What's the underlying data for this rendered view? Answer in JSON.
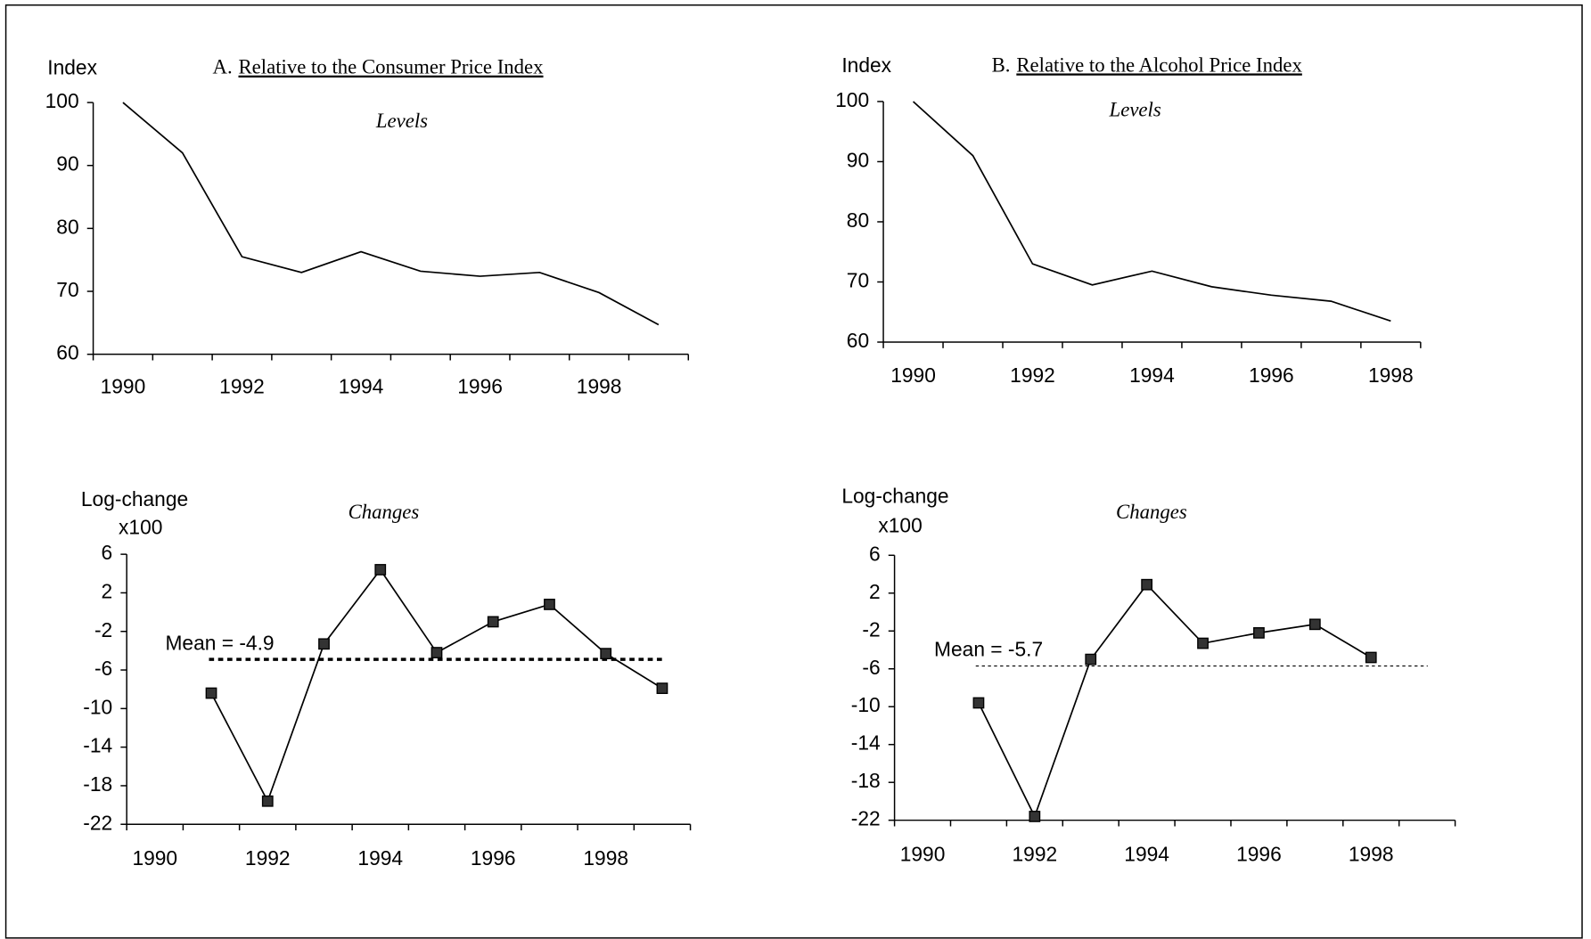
{
  "chart_data": [
    {
      "type": "line",
      "panel": "A.",
      "title": "Relative to the Consumer Price Index",
      "subtitle": "Levels",
      "ylabel": [
        "Index"
      ],
      "categories": [
        "1990",
        null,
        "1992",
        null,
        "1994",
        null,
        "1996",
        null,
        "1998",
        null
      ],
      "values": [
        100,
        92,
        75.5,
        73,
        76.3,
        73.2,
        72.4,
        73,
        69.8,
        64.7
      ],
      "color": "#000000",
      "markers": false,
      "ylim": [
        60,
        100
      ],
      "yticks": [
        60,
        70,
        80,
        90,
        100
      ]
    },
    {
      "type": "line",
      "panel": "B.",
      "title": "Relative to the Alcohol Price Index",
      "subtitle": "Levels",
      "ylabel": [
        "Index"
      ],
      "categories": [
        "1990",
        null,
        "1992",
        null,
        "1994",
        null,
        "1996",
        null,
        "1998"
      ],
      "values": [
        100,
        91,
        73,
        69.5,
        71.8,
        69.2,
        67.8,
        66.8,
        63.5
      ],
      "color": "#000000",
      "markers": false,
      "ylim": [
        60,
        100
      ],
      "yticks": [
        60,
        70,
        80,
        90,
        100
      ]
    },
    {
      "type": "line",
      "subtitle": "Changes",
      "ylabel": [
        "Log-change",
        "x100"
      ],
      "categories": [
        "1990",
        null,
        "1992",
        null,
        "1994",
        null,
        "1996",
        null,
        "1998",
        null
      ],
      "values": [
        null,
        -8.4,
        -19.6,
        -3.3,
        4.4,
        -4.2,
        -1.0,
        0.8,
        -4.3,
        -7.9
      ],
      "color": "#000000",
      "markers": true,
      "mean": -4.9,
      "mean_label": "Mean = -4.9",
      "ylim": [
        -22,
        6
      ],
      "yticks": [
        -22,
        -18,
        -14,
        -10,
        -6,
        -2,
        2,
        6
      ]
    },
    {
      "type": "line",
      "subtitle": "Changes",
      "ylabel": [
        "Log-change",
        "x100"
      ],
      "categories": [
        "1990",
        null,
        "1992",
        null,
        "1994",
        null,
        "1996",
        null,
        "1998",
        null
      ],
      "values": [
        null,
        -9.6,
        -21.6,
        -5.0,
        2.9,
        -3.3,
        -2.2,
        -1.3,
        -4.8,
        null
      ],
      "color": "#000000",
      "markers": true,
      "mean": -5.7,
      "mean_label": "Mean = -5.7",
      "ylim": [
        -22,
        6
      ],
      "yticks": [
        -22,
        -18,
        -14,
        -10,
        -6,
        -2,
        2,
        6
      ]
    }
  ]
}
